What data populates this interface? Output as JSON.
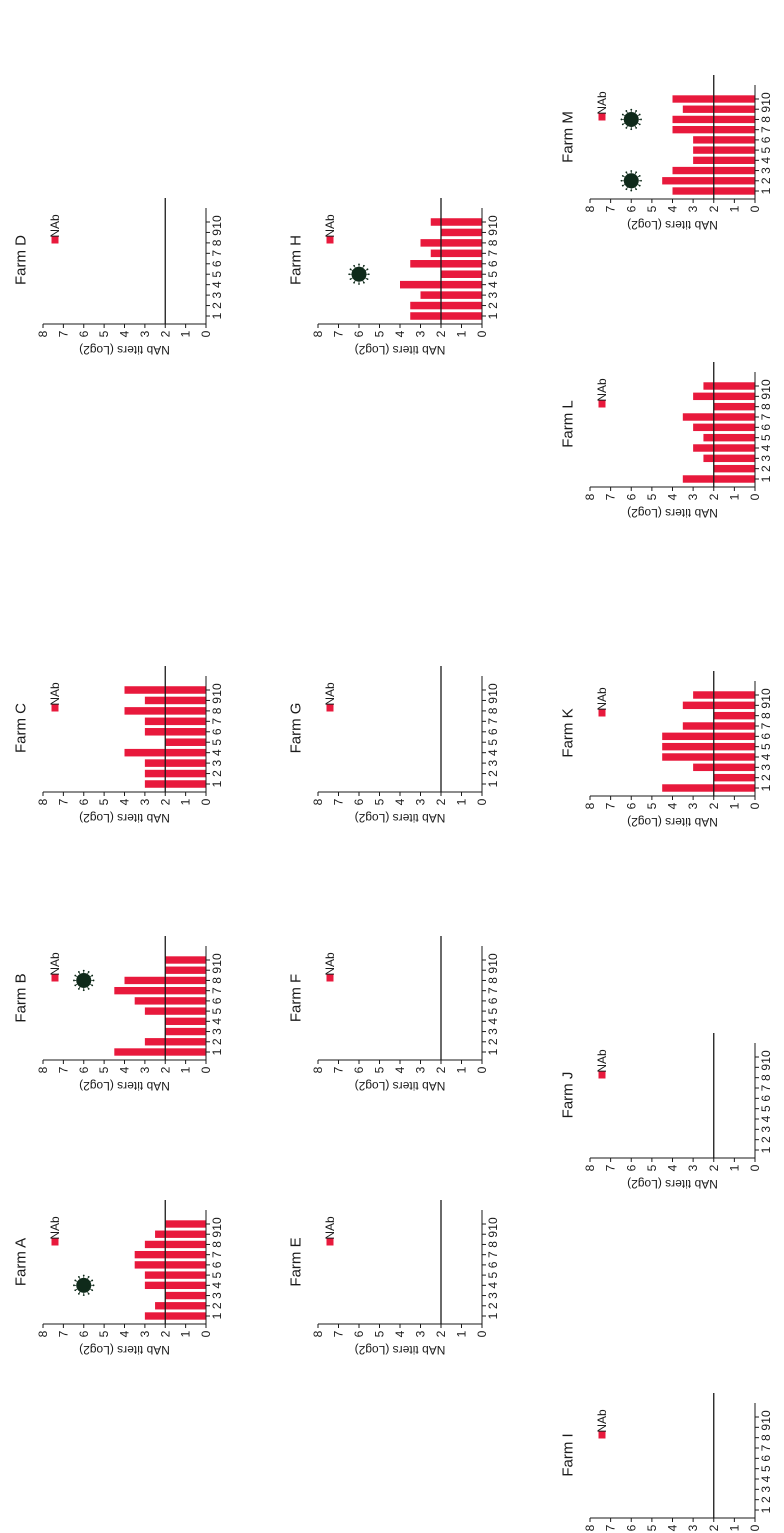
{
  "colors": {
    "bar": "#e8193c",
    "axis": "#1a1a1a",
    "virus": "#0f2a1a"
  },
  "chart_data": [
    {
      "type": "bar",
      "title": "Farm A",
      "legend": "NAb",
      "ylabel": "NAb titers (Log2)",
      "categories": [
        "1",
        "2",
        "3",
        "4",
        "5",
        "6",
        "7",
        "8",
        "9",
        "10"
      ],
      "values": [
        3,
        2.5,
        2,
        3,
        3,
        3.5,
        3.5,
        3,
        2.5,
        2
      ],
      "ylim": [
        0,
        8
      ],
      "threshold": 2,
      "virus_markers": [
        4
      ]
    },
    {
      "type": "bar",
      "title": "Farm B",
      "legend": "NAb",
      "ylabel": "NAb titers (Log2)",
      "categories": [
        "1",
        "2",
        "3",
        "4",
        "5",
        "6",
        "7",
        "8",
        "9",
        "10"
      ],
      "values": [
        4.5,
        3,
        2,
        2,
        3,
        3.5,
        4.5,
        4,
        2,
        2
      ],
      "ylim": [
        0,
        8
      ],
      "threshold": 2,
      "virus_markers": [
        8
      ]
    },
    {
      "type": "bar",
      "title": "Farm C",
      "legend": "NAb",
      "ylabel": "NAb titers (Log2)",
      "categories": [
        "1",
        "2",
        "3",
        "4",
        "5",
        "6",
        "7",
        "8",
        "9",
        "10"
      ],
      "values": [
        3,
        3,
        3,
        4,
        2,
        3,
        3,
        4,
        3,
        4
      ],
      "ylim": [
        0,
        8
      ],
      "threshold": 2,
      "virus_markers": []
    },
    {
      "type": "bar",
      "title": "Farm D",
      "legend": "NAb",
      "ylabel": "NAb titers (Log2)",
      "categories": [
        "1",
        "2",
        "3",
        "4",
        "5",
        "6",
        "7",
        "8",
        "9",
        "10"
      ],
      "values": [
        0,
        0,
        0,
        0,
        0,
        0,
        0,
        0,
        0,
        0
      ],
      "ylim": [
        0,
        8
      ],
      "threshold": 2,
      "virus_markers": []
    },
    {
      "type": "bar",
      "title": "Farm E",
      "legend": "NAb",
      "ylabel": "NAb titers (Log2)",
      "categories": [
        "1",
        "2",
        "3",
        "4",
        "5",
        "6",
        "7",
        "8",
        "9",
        "10"
      ],
      "values": [
        0,
        0,
        0,
        0,
        0,
        0,
        0,
        0,
        0,
        0
      ],
      "ylim": [
        0,
        8
      ],
      "threshold": 2,
      "virus_markers": []
    },
    {
      "type": "bar",
      "title": "Farm F",
      "legend": "NAb",
      "ylabel": "NAb titers (Log2)",
      "categories": [
        "1",
        "2",
        "3",
        "4",
        "5",
        "6",
        "7",
        "8",
        "9",
        "10"
      ],
      "values": [
        0,
        0,
        0,
        0,
        0,
        0,
        0,
        0,
        0,
        0
      ],
      "ylim": [
        0,
        8
      ],
      "threshold": 2,
      "virus_markers": []
    },
    {
      "type": "bar",
      "title": "Farm G",
      "legend": "NAb",
      "ylabel": "NAb titers (Log2)",
      "categories": [
        "1",
        "2",
        "3",
        "4",
        "5",
        "6",
        "7",
        "8",
        "9",
        "10"
      ],
      "values": [
        0,
        0,
        0,
        0,
        0,
        0,
        0,
        0,
        0,
        0
      ],
      "ylim": [
        0,
        8
      ],
      "threshold": 2,
      "virus_markers": []
    },
    {
      "type": "bar",
      "title": "Farm H",
      "legend": "NAb",
      "ylabel": "NAb titers (Log2)",
      "categories": [
        "1",
        "2",
        "3",
        "4",
        "5",
        "6",
        "7",
        "8",
        "9",
        "10"
      ],
      "values": [
        3.5,
        3.5,
        3,
        4,
        2,
        3.5,
        2.5,
        3,
        2,
        2.5
      ],
      "ylim": [
        0,
        8
      ],
      "threshold": 2,
      "virus_markers": [
        5
      ]
    },
    {
      "type": "bar",
      "title": "Farm I",
      "legend": "NAb",
      "ylabel": "NAb titers (Log2)",
      "categories": [
        "1",
        "2",
        "3",
        "4",
        "5",
        "6",
        "7",
        "8",
        "9",
        "10"
      ],
      "values": [
        0,
        0,
        0,
        0,
        0,
        0,
        0,
        0,
        0,
        0
      ],
      "ylim": [
        0,
        8
      ],
      "threshold": 2,
      "virus_markers": []
    },
    {
      "type": "bar",
      "title": "Farm J",
      "legend": "NAb",
      "ylabel": "NAb titers (Log2)",
      "categories": [
        "1",
        "2",
        "3",
        "4",
        "5",
        "6",
        "7",
        "8",
        "9",
        "10"
      ],
      "values": [
        0,
        0,
        0,
        0,
        0,
        0,
        0,
        0,
        0,
        0
      ],
      "ylim": [
        0,
        8
      ],
      "threshold": 2,
      "virus_markers": []
    },
    {
      "type": "bar",
      "title": "Farm K",
      "legend": "NAb",
      "ylabel": "NAb titers (Log2)",
      "categories": [
        "1",
        "2",
        "3",
        "4",
        "5",
        "6",
        "7",
        "8",
        "9",
        "10"
      ],
      "values": [
        4.5,
        2,
        3,
        4.5,
        4.5,
        4.5,
        3.5,
        2,
        3.5,
        3
      ],
      "ylim": [
        0,
        8
      ],
      "threshold": 2,
      "virus_markers": []
    },
    {
      "type": "bar",
      "title": "Farm L",
      "legend": "NAb",
      "ylabel": "NAb titers (Log2)",
      "categories": [
        "1",
        "2",
        "3",
        "4",
        "5",
        "6",
        "7",
        "8",
        "9",
        "10"
      ],
      "values": [
        3.5,
        2,
        2.5,
        3,
        2.5,
        3,
        3.5,
        2,
        3,
        2.5
      ],
      "ylim": [
        0,
        8
      ],
      "threshold": 2,
      "virus_markers": []
    },
    {
      "type": "bar",
      "title": "Farm M",
      "legend": "NAb",
      "ylabel": "NAb titers (Log2)",
      "categories": [
        "1",
        "2",
        "3",
        "4",
        "5",
        "6",
        "7",
        "8",
        "9",
        "10"
      ],
      "values": [
        4,
        4.5,
        4,
        3,
        3,
        3,
        4,
        4,
        3.5,
        4
      ],
      "ylim": [
        0,
        8
      ],
      "threshold": 2,
      "virus_markers": [
        2,
        8
      ]
    }
  ]
}
